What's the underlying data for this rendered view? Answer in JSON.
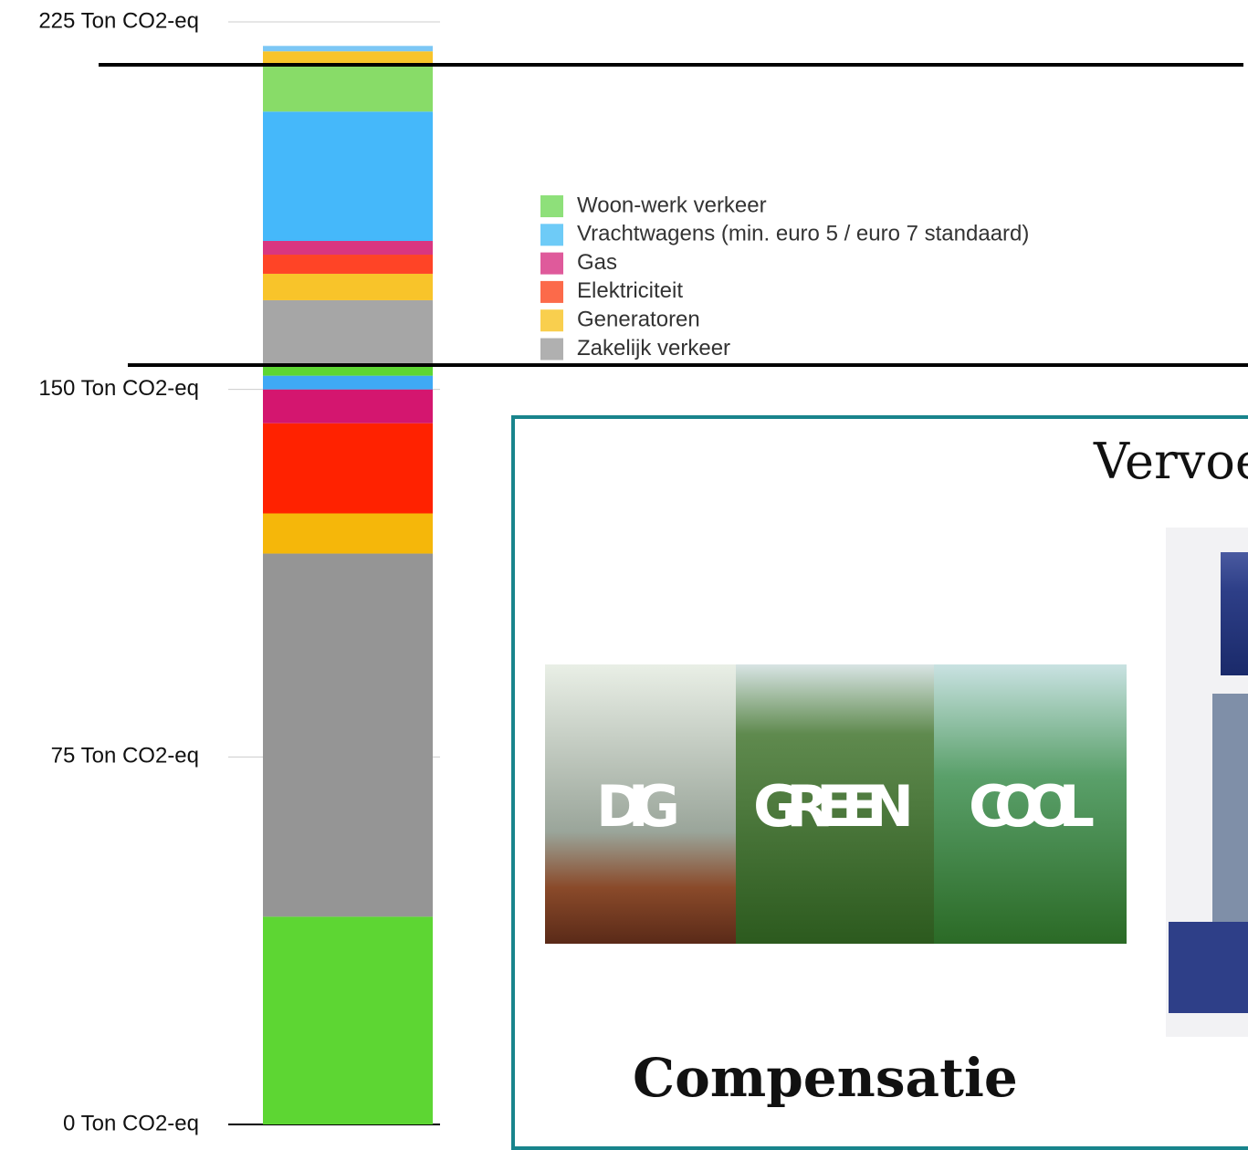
{
  "chart_data": {
    "type": "stacked-bar",
    "ylim": [
      0,
      225
    ],
    "yticks": [
      {
        "value": 0,
        "label": "0 Ton CO2-eq"
      },
      {
        "value": 75,
        "label": "75 Ton CO2-eq"
      },
      {
        "value": 150,
        "label": "150 Ton CO2-eq"
      },
      {
        "value": 225,
        "label": "225 Ton CO2-eq"
      }
    ],
    "grid": true,
    "segments": [
      {
        "value": 42.4,
        "color": "#5dd633"
      },
      {
        "value": 74.1,
        "color": "#959595"
      },
      {
        "value": 8.2,
        "color": "#f5b70a"
      },
      {
        "value": 18.4,
        "color": "#ff2200"
      },
      {
        "value": 6.9,
        "color": "#d4166f"
      },
      {
        "value": 2.8,
        "color": "#3fa9f5"
      },
      {
        "value": 2.0,
        "color": "#5dd633"
      },
      {
        "value": 13.4,
        "color": "#a6a6a6"
      },
      {
        "value": 5.4,
        "color": "#f8c42a"
      },
      {
        "value": 3.9,
        "color": "#ff4426"
      },
      {
        "value": 2.8,
        "color": "#d93680"
      },
      {
        "value": 26.4,
        "color": "#45b8fa"
      },
      {
        "value": 9.3,
        "color": "#88dc68"
      },
      {
        "value": 3.0,
        "color": "#f8c42a"
      },
      {
        "value": 1.1,
        "color": "#7cc7f5"
      }
    ],
    "legend": [
      {
        "name": "Woon-werk verkeer",
        "color": "#8ee07a"
      },
      {
        "name": "Vrachtwagens (min. euro 5 / euro 7 standaard)",
        "color": "#6ecbf7"
      },
      {
        "name": "Gas",
        "color": "#df5a9b"
      },
      {
        "name": "Elektriciteit",
        "color": "#fc6a4a"
      },
      {
        "name": "Generatoren",
        "color": "#f9cf4e"
      },
      {
        "name": "Zakelijk verkeer",
        "color": "#b0b0b0"
      }
    ]
  },
  "panel": {
    "title": "Vervoe",
    "caption": "Compensatie",
    "image_words": [
      "DIG",
      "GREEN",
      "COOL"
    ]
  }
}
